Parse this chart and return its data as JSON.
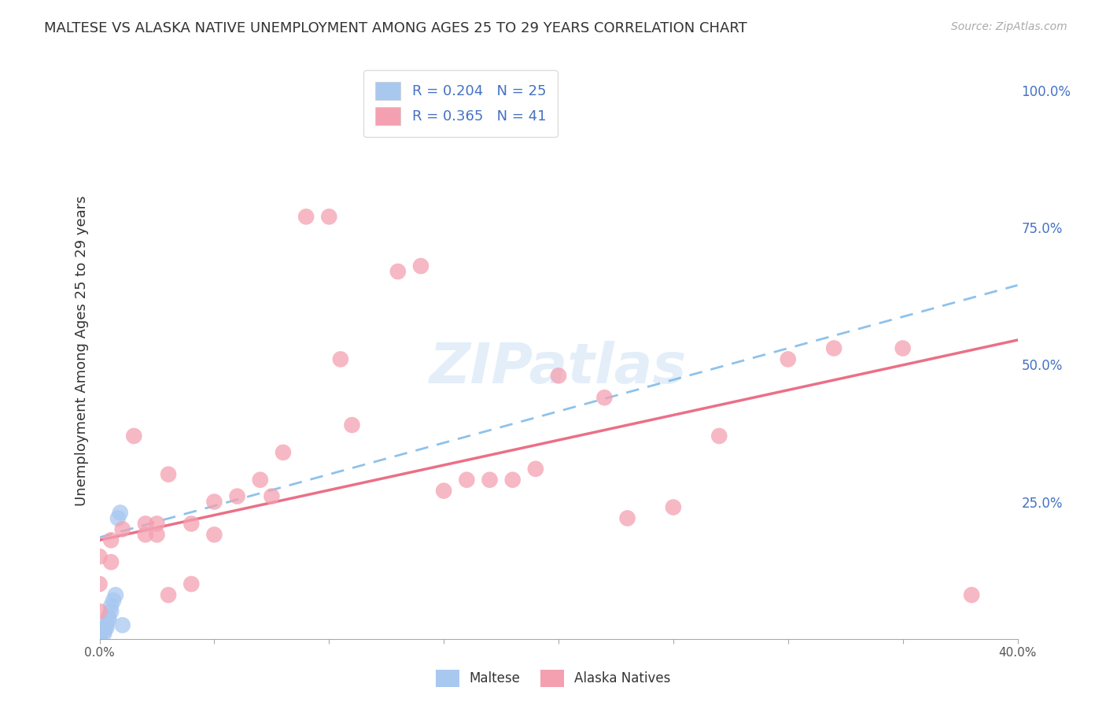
{
  "title": "MALTESE VS ALASKA NATIVE UNEMPLOYMENT AMONG AGES 25 TO 29 YEARS CORRELATION CHART",
  "source": "Source: ZipAtlas.com",
  "ylabel": "Unemployment Among Ages 25 to 29 years",
  "xlim": [
    0.0,
    0.4
  ],
  "ylim": [
    0.0,
    1.05
  ],
  "xticks": [
    0.0,
    0.05,
    0.1,
    0.15,
    0.2,
    0.25,
    0.3,
    0.35,
    0.4
  ],
  "xticklabels": [
    "0.0%",
    "",
    "",
    "",
    "",
    "",
    "",
    "",
    "40.0%"
  ],
  "yticks_right": [
    0.0,
    0.25,
    0.5,
    0.75,
    1.0
  ],
  "yticklabels_right": [
    "",
    "25.0%",
    "50.0%",
    "75.0%",
    "100.0%"
  ],
  "maltese_R": 0.204,
  "maltese_N": 25,
  "alaska_R": 0.365,
  "alaska_N": 41,
  "maltese_color": "#a8c8f0",
  "alaska_color": "#f4a0b0",
  "maltese_line_color": "#7ab8e8",
  "alaska_line_color": "#e8607a",
  "watermark": "ZIPatlas",
  "maltese_line_x0": 0.0,
  "maltese_line_y0": 0.185,
  "maltese_line_x1": 0.4,
  "maltese_line_y1": 0.645,
  "alaska_line_x0": 0.0,
  "alaska_line_y0": 0.18,
  "alaska_line_x1": 0.4,
  "alaska_line_y1": 0.545,
  "maltese_x": [
    0.0,
    0.0,
    0.0,
    0.0,
    0.0,
    0.0,
    0.0,
    0.0,
    0.0,
    0.0,
    0.0,
    0.002,
    0.002,
    0.002,
    0.003,
    0.003,
    0.004,
    0.004,
    0.005,
    0.005,
    0.006,
    0.007,
    0.008,
    0.009,
    0.01
  ],
  "maltese_y": [
    0.0,
    0.0,
    0.0,
    0.002,
    0.003,
    0.005,
    0.005,
    0.007,
    0.008,
    0.009,
    0.01,
    0.01,
    0.015,
    0.02,
    0.02,
    0.025,
    0.035,
    0.04,
    0.05,
    0.06,
    0.07,
    0.08,
    0.22,
    0.23,
    0.025
  ],
  "alaska_x": [
    0.0,
    0.0,
    0.0,
    0.005,
    0.005,
    0.01,
    0.015,
    0.02,
    0.02,
    0.025,
    0.025,
    0.03,
    0.03,
    0.04,
    0.04,
    0.05,
    0.05,
    0.06,
    0.07,
    0.075,
    0.08,
    0.09,
    0.1,
    0.105,
    0.11,
    0.13,
    0.14,
    0.15,
    0.16,
    0.17,
    0.18,
    0.19,
    0.2,
    0.22,
    0.23,
    0.25,
    0.27,
    0.3,
    0.32,
    0.35,
    0.38
  ],
  "alaska_y": [
    0.05,
    0.1,
    0.15,
    0.14,
    0.18,
    0.2,
    0.37,
    0.19,
    0.21,
    0.19,
    0.21,
    0.08,
    0.3,
    0.1,
    0.21,
    0.19,
    0.25,
    0.26,
    0.29,
    0.26,
    0.34,
    0.77,
    0.77,
    0.51,
    0.39,
    0.67,
    0.68,
    0.27,
    0.29,
    0.29,
    0.29,
    0.31,
    0.48,
    0.44,
    0.22,
    0.24,
    0.37,
    0.51,
    0.53,
    0.53,
    0.08
  ]
}
